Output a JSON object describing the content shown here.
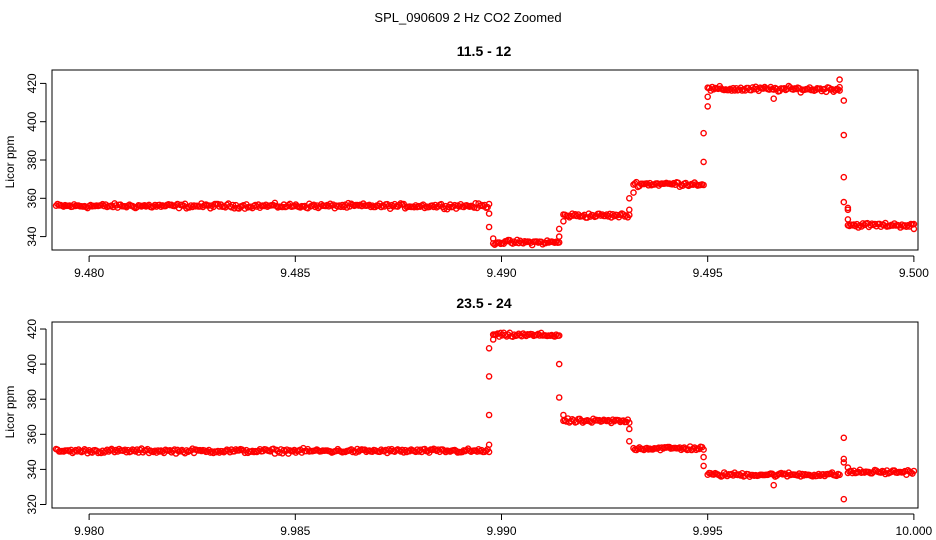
{
  "figure_title": "SPL_090609  2 Hz CO2 Zoomed",
  "colors": {
    "points": "#ff0000"
  },
  "chart_data": [
    {
      "type": "scatter",
      "title": "11.5 - 12",
      "xlabel": "",
      "ylabel": "Licor ppm",
      "xlim": [
        9.4791,
        9.5001
      ],
      "ylim": [
        333,
        427
      ],
      "xticks": [
        9.48,
        9.485,
        9.49,
        9.495,
        9.5
      ],
      "xtick_labels": [
        "9.480",
        "9.485",
        "9.490",
        "9.495",
        "9.500"
      ],
      "yticks": [
        340,
        360,
        380,
        400,
        420
      ],
      "ytick_labels": [
        "340",
        "360",
        "380",
        "400",
        "420"
      ],
      "grid": false,
      "series": [
        {
          "color": "#ff0000",
          "segments": [
            {
              "x0": 9.4792,
              "x1": 9.4897,
              "y": 356,
              "noise": 1.2
            },
            {
              "x0": 9.4898,
              "x1": 9.4914,
              "y": 337,
              "noise": 1.2
            },
            {
              "x0": 9.4915,
              "x1": 9.4931,
              "y": 351,
              "noise": 1.2
            },
            {
              "x0": 9.4932,
              "x1": 9.4949,
              "y": 367.5,
              "noise": 1.2
            },
            {
              "x0": 9.495,
              "x1": 9.4982,
              "y": 417,
              "noise": 1.3
            },
            {
              "x0": 9.4984,
              "x1": 9.5,
              "y": 346,
              "noise": 1.2
            }
          ],
          "outliers": [
            {
              "x": 9.4897,
              "y": 352
            },
            {
              "x": 9.4897,
              "y": 345
            },
            {
              "x": 9.4898,
              "y": 339
            },
            {
              "x": 9.4914,
              "y": 340
            },
            {
              "x": 9.4914,
              "y": 344
            },
            {
              "x": 9.4915,
              "y": 348
            },
            {
              "x": 9.4931,
              "y": 354
            },
            {
              "x": 9.4931,
              "y": 360
            },
            {
              "x": 9.4932,
              "y": 363
            },
            {
              "x": 9.4949,
              "y": 379
            },
            {
              "x": 9.4949,
              "y": 394
            },
            {
              "x": 9.495,
              "y": 408
            },
            {
              "x": 9.495,
              "y": 413
            },
            {
              "x": 9.4966,
              "y": 412
            },
            {
              "x": 9.4982,
              "y": 422
            },
            {
              "x": 9.4982,
              "y": 418
            },
            {
              "x": 9.4983,
              "y": 411
            },
            {
              "x": 9.4983,
              "y": 393
            },
            {
              "x": 9.4983,
              "y": 371
            },
            {
              "x": 9.4983,
              "y": 358
            },
            {
              "x": 9.4984,
              "y": 355
            },
            {
              "x": 9.4984,
              "y": 354
            },
            {
              "x": 9.4984,
              "y": 349
            },
            {
              "x": 9.5,
              "y": 344
            }
          ]
        }
      ]
    },
    {
      "type": "scatter",
      "title": "23.5 - 24",
      "xlabel": "",
      "ylabel": "Licor ppm",
      "xlim": [
        9.9791,
        10.0001
      ],
      "ylim": [
        318,
        424
      ],
      "xticks": [
        9.98,
        9.985,
        9.99,
        9.995,
        10.0
      ],
      "xtick_labels": [
        "9.980",
        "9.985",
        "9.990",
        "9.995",
        "10.000"
      ],
      "yticks": [
        320,
        340,
        360,
        380,
        400,
        420
      ],
      "ytick_labels": [
        "320",
        "340",
        "360",
        "380",
        "400",
        "420"
      ],
      "grid": false,
      "series": [
        {
          "color": "#ff0000",
          "segments": [
            {
              "x0": 9.9792,
              "x1": 9.9897,
              "y": 350.5,
              "noise": 1.2
            },
            {
              "x0": 9.9898,
              "x1": 9.9914,
              "y": 416.5,
              "noise": 1.2
            },
            {
              "x0": 9.9915,
              "x1": 9.9931,
              "y": 367.5,
              "noise": 1.2
            },
            {
              "x0": 9.9932,
              "x1": 9.9949,
              "y": 352,
              "noise": 1.2
            },
            {
              "x0": 9.995,
              "x1": 9.9982,
              "y": 337,
              "noise": 1.2
            },
            {
              "x0": 9.9984,
              "x1": 10.0,
              "y": 338.5,
              "noise": 1.2
            }
          ],
          "outliers": [
            {
              "x": 9.9897,
              "y": 354
            },
            {
              "x": 9.9897,
              "y": 371
            },
            {
              "x": 9.9897,
              "y": 393
            },
            {
              "x": 9.9897,
              "y": 409
            },
            {
              "x": 9.9898,
              "y": 414
            },
            {
              "x": 9.9914,
              "y": 400
            },
            {
              "x": 9.9914,
              "y": 381
            },
            {
              "x": 9.9915,
              "y": 371
            },
            {
              "x": 9.9931,
              "y": 363
            },
            {
              "x": 9.9931,
              "y": 356
            },
            {
              "x": 9.9949,
              "y": 347
            },
            {
              "x": 9.9949,
              "y": 342
            },
            {
              "x": 9.9966,
              "y": 331
            },
            {
              "x": 9.9983,
              "y": 358
            },
            {
              "x": 9.9983,
              "y": 346
            },
            {
              "x": 9.9983,
              "y": 344
            },
            {
              "x": 9.9983,
              "y": 323
            },
            {
              "x": 9.9984,
              "y": 341
            }
          ]
        }
      ]
    }
  ]
}
